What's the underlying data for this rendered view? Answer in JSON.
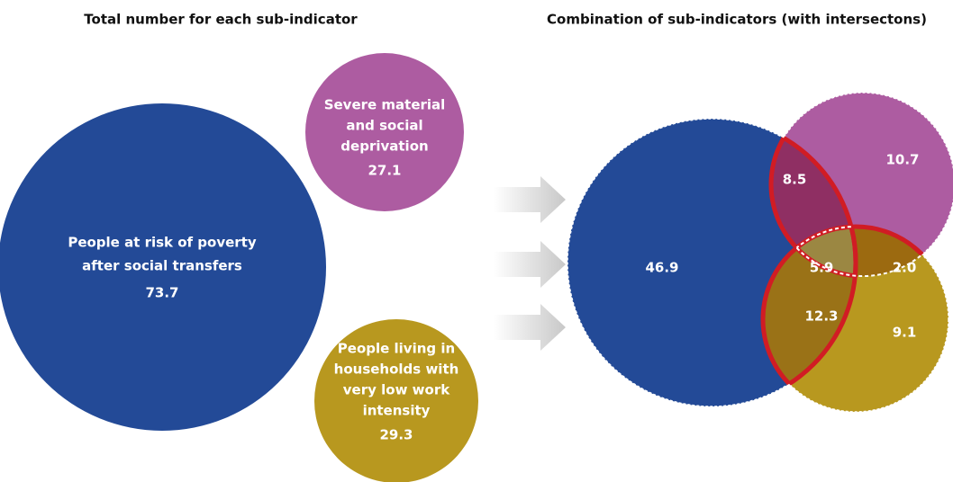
{
  "left_title": "Total number for each sub-indicator",
  "right_title": "Combination of sub-indicators (with intersectons)",
  "circles": [
    {
      "lines": [
        "People at risk of poverty",
        "after social transfers"
      ],
      "value": "73.7"
    },
    {
      "lines": [
        "Severe material",
        "and social",
        "deprivation"
      ],
      "value": "27.1"
    },
    {
      "lines": [
        "People living in",
        "households with",
        "very low work",
        "intensity"
      ],
      "value": "29.3"
    }
  ],
  "venn": {
    "poverty_only": "46.9",
    "deprivation_only": "10.7",
    "work_only": "9.1",
    "poverty_deprivation": "8.5",
    "poverty_work": "12.3",
    "deprivation_work": "2.0",
    "all_three": "5.9"
  }
}
